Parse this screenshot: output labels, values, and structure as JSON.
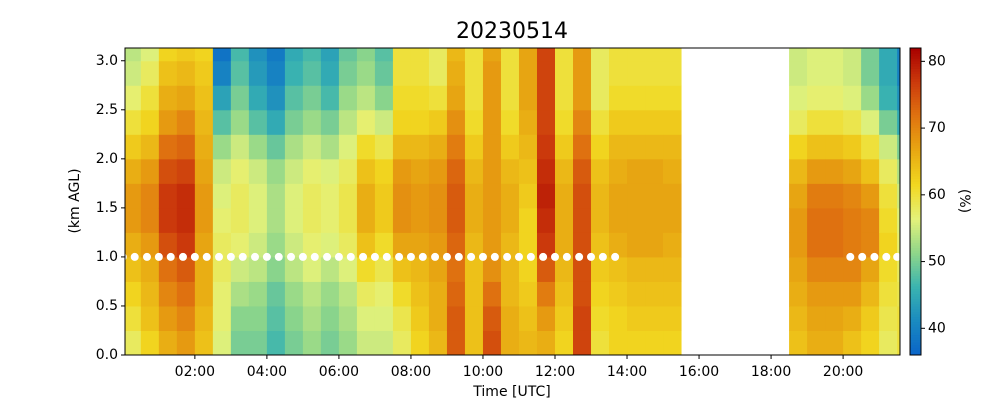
{
  "chart_data": {
    "type": "heatmap",
    "title": "20230514",
    "x_label": "Time [UTC]",
    "y_label": "(km AGL)",
    "colorbar_label": "(%)",
    "xlim": [
      0.06,
      21.58
    ],
    "ylim": [
      0,
      3.13
    ],
    "xticks": [
      {
        "value": 2,
        "label": "02:00"
      },
      {
        "value": 4,
        "label": "04:00"
      },
      {
        "value": 6,
        "label": "06:00"
      },
      {
        "value": 8,
        "label": "08:00"
      },
      {
        "value": 10,
        "label": "10:00"
      },
      {
        "value": 12,
        "label": "12:00"
      },
      {
        "value": 14,
        "label": "14:00"
      },
      {
        "value": 16,
        "label": "16:00"
      },
      {
        "value": 18,
        "label": "18:00"
      },
      {
        "value": 20,
        "label": "20:00"
      }
    ],
    "yticks": [
      {
        "value": 0,
        "label": "0.0"
      },
      0.5,
      {
        "value": 1,
        "label": "1.0"
      },
      1.5,
      {
        "value": 2,
        "label": "2.0"
      },
      2.5,
      {
        "value": 3,
        "label": "3.0"
      }
    ],
    "clim": [
      36,
      82
    ],
    "cticks": [
      40,
      50,
      60,
      70,
      80
    ],
    "colormap": [
      "#0a64c8",
      "#1a8ac0",
      "#3ab4b0",
      "#8fd68a",
      "#e4f27a",
      "#f2d820",
      "#e8a812",
      "#e07410",
      "#cc3a0c",
      "#a80000"
    ],
    "x_bins": [
      0,
      0.5,
      1,
      1.5,
      2,
      2.5,
      3,
      3.5,
      4,
      4.5,
      5,
      5.5,
      6,
      6.5,
      7,
      7.5,
      8,
      8.5,
      9,
      9.5,
      10,
      10.5,
      11,
      11.5,
      12,
      12.5,
      13,
      13.5,
      14,
      14.5,
      15,
      15.5,
      16,
      16.5,
      17,
      17.5,
      18,
      18.5,
      19,
      19.5,
      20,
      20.5,
      21,
      21.5,
      22
    ],
    "y_bins": [
      0,
      0.25,
      0.5,
      0.75,
      1,
      1.25,
      1.5,
      1.75,
      2,
      2.25,
      2.5,
      2.75,
      3,
      3.13
    ],
    "values": [
      [
        58,
        60,
        62,
        64,
        66,
        68,
        68,
        66,
        63,
        60,
        57,
        55,
        54
      ],
      [
        62,
        64,
        65,
        66,
        68,
        70,
        70,
        68,
        65,
        62,
        60,
        58,
        56
      ],
      [
        66,
        68,
        70,
        72,
        75,
        77,
        77,
        75,
        72,
        68,
        66,
        64,
        62
      ],
      [
        68,
        70,
        72,
        74,
        77,
        78,
        78,
        76,
        73,
        70,
        67,
        65,
        63
      ],
      [
        64,
        65,
        66,
        66,
        67,
        68,
        68,
        67,
        66,
        65,
        64,
        63,
        62
      ],
      [
        56,
        57,
        57,
        58,
        58,
        57,
        56,
        55,
        52,
        48,
        44,
        40,
        38
      ],
      [
        50,
        51,
        53,
        55,
        57,
        58,
        58,
        57,
        55,
        52,
        50,
        48,
        47
      ],
      [
        50,
        51,
        52,
        54,
        55,
        56,
        56,
        55,
        52,
        48,
        45,
        43,
        42
      ],
      [
        47,
        48,
        49,
        51,
        52,
        53,
        53,
        52,
        49,
        45,
        42,
        40,
        39
      ],
      [
        50,
        51,
        52,
        54,
        55,
        56,
        56,
        55,
        53,
        50,
        48,
        46,
        45
      ],
      [
        52,
        53,
        54,
        56,
        57,
        58,
        58,
        57,
        55,
        52,
        50,
        48,
        47
      ],
      [
        50,
        51,
        52,
        54,
        56,
        57,
        57,
        56,
        53,
        50,
        47,
        45,
        44
      ],
      [
        52,
        53,
        54,
        56,
        58,
        59,
        59,
        58,
        56,
        54,
        52,
        50,
        49
      ],
      [
        55,
        56,
        58,
        61,
        64,
        66,
        66,
        64,
        61,
        57,
        54,
        52,
        51
      ],
      [
        55,
        56,
        57,
        59,
        61,
        63,
        63,
        62,
        59,
        55,
        51,
        49,
        48
      ],
      [
        58,
        59,
        61,
        64,
        67,
        69,
        69,
        68,
        65,
        62,
        61,
        60,
        60
      ],
      [
        62,
        63,
        64,
        65,
        67,
        68,
        68,
        67,
        65,
        62,
        61,
        60,
        60
      ],
      [
        65,
        66,
        66,
        67,
        68,
        69,
        69,
        68,
        66,
        63,
        60,
        58,
        58
      ],
      [
        74,
        74,
        73,
        72,
        73,
        74,
        74,
        73,
        71,
        69,
        67,
        66,
        65
      ],
      [
        64,
        64,
        64,
        64,
        65,
        66,
        66,
        65,
        63,
        61,
        60,
        60,
        60
      ],
      [
        75,
        74,
        72,
        69,
        68,
        68,
        68,
        68,
        68,
        68,
        68,
        68,
        67
      ],
      [
        66,
        66,
        65,
        65,
        65,
        66,
        66,
        65,
        63,
        61,
        60,
        60,
        60
      ],
      [
        65,
        64,
        63,
        62,
        62,
        62,
        63,
        64,
        65,
        66,
        67,
        67,
        67
      ],
      [
        66,
        68,
        71,
        74,
        77,
        78,
        79,
        78,
        77,
        76,
        76,
        76,
        76
      ],
      [
        62,
        63,
        64,
        65,
        66,
        66,
        66,
        65,
        63,
        61,
        60,
        60,
        60
      ],
      [
        76,
        76,
        75,
        75,
        75,
        75,
        75,
        74,
        72,
        70,
        68,
        68,
        68
      ],
      [
        60,
        61,
        62,
        63,
        64,
        65,
        65,
        64,
        62,
        60,
        58,
        58,
        58
      ],
      [
        62,
        62,
        63,
        64,
        66,
        67,
        67,
        66,
        65,
        63,
        61,
        60,
        60
      ],
      [
        62,
        63,
        64,
        65,
        67,
        67,
        67,
        67,
        65,
        63,
        61,
        60,
        60
      ],
      [
        62,
        63,
        64,
        65,
        67,
        67,
        67,
        67,
        65,
        63,
        61,
        60,
        60
      ],
      [
        62,
        63,
        64,
        65,
        66,
        67,
        67,
        66,
        65,
        63,
        61,
        60,
        60
      ],
      null,
      null,
      null,
      null,
      null,
      null,
      [
        64,
        65,
        66,
        67,
        68,
        68,
        67,
        65,
        62,
        58,
        56,
        55,
        55
      ],
      [
        66,
        67,
        68,
        70,
        72,
        72,
        71,
        68,
        64,
        60,
        57,
        56,
        56
      ],
      [
        66,
        67,
        68,
        70,
        72,
        72,
        71,
        68,
        64,
        60,
        57,
        56,
        56
      ],
      [
        64,
        66,
        68,
        70,
        71,
        71,
        70,
        67,
        63,
        59,
        56,
        55,
        55
      ],
      [
        62,
        63,
        65,
        67,
        70,
        70,
        68,
        64,
        60,
        56,
        52,
        50,
        50
      ],
      [
        58,
        59,
        60,
        61,
        62,
        61,
        60,
        58,
        55,
        50,
        46,
        45,
        45
      ],
      [
        60,
        60,
        59,
        58,
        57,
        56,
        55,
        53,
        50,
        45,
        42,
        40,
        40
      ]
    ],
    "points": {
      "color": "#ffffff",
      "x": [
        0,
        0.33,
        0.67,
        1,
        1.33,
        1.67,
        2,
        2.33,
        2.67,
        3,
        3.33,
        3.67,
        4,
        4.33,
        4.67,
        5,
        5.33,
        5.67,
        6,
        6.33,
        6.67,
        7,
        7.33,
        7.67,
        8,
        8.33,
        8.67,
        9,
        9.33,
        9.67,
        10,
        10.33,
        10.67,
        11,
        11.33,
        11.67,
        12,
        12.33,
        12.67,
        13,
        13.33,
        13.67,
        20.2,
        20.53,
        20.87,
        21.2,
        21.5
      ],
      "y": [
        1,
        1,
        1,
        1,
        1,
        1,
        1,
        1,
        1,
        1,
        1,
        1,
        1,
        1,
        1,
        1,
        1,
        1,
        1,
        1,
        1,
        1,
        1,
        1,
        1,
        1,
        1,
        1,
        1,
        1,
        1,
        1,
        1,
        1,
        1,
        1,
        1,
        1,
        1,
        1,
        1,
        1,
        1,
        1,
        1,
        1,
        1
      ]
    }
  }
}
